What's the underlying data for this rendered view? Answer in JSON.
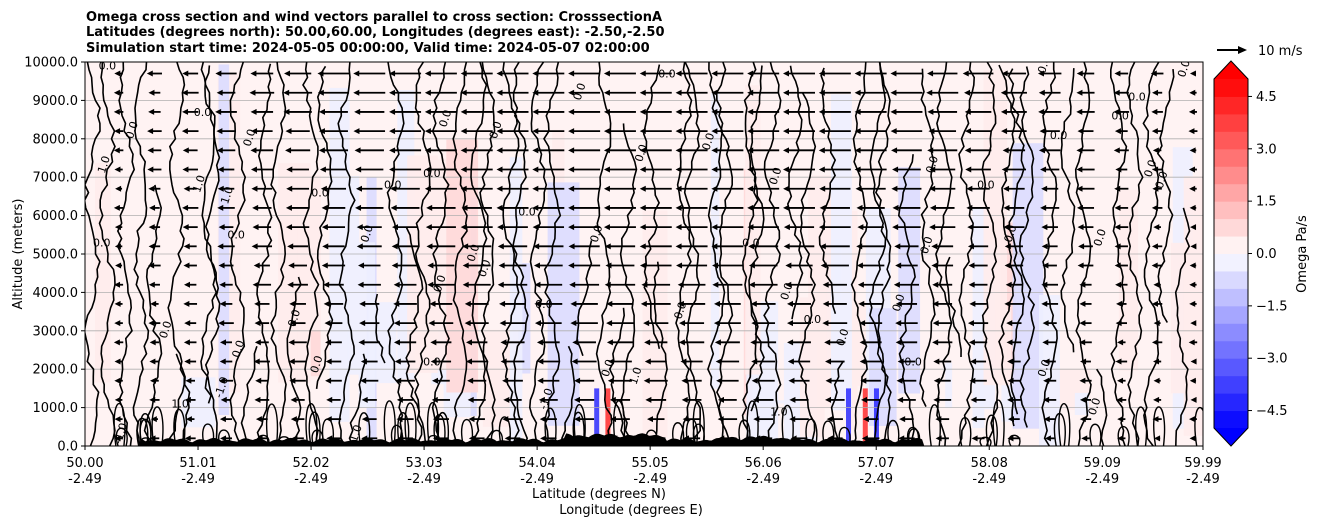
{
  "chart_data": {
    "type": "contour-cross-section",
    "title_lines": [
      "Omega cross section and wind vectors parallel to cross section: CrosssectionA",
      "Latitudes (degrees north): 50.00,60.00, Longitudes (degrees east): -2.50,-2.50",
      "Simulation start time: 2024-05-05 00:00:00, Valid time: 2024-05-07 02:00:00"
    ],
    "xlabel_lat": "Latitude (degrees N)",
    "xlabel_lon": "Longitude (degrees E)",
    "ylabel": "Altitude (meters)",
    "xlim": [
      50.0,
      59.99
    ],
    "ylim": [
      0,
      10000
    ],
    "x_ticks": [
      {
        "lat": "50.00",
        "lon": "-2.49",
        "value": 50.0
      },
      {
        "lat": "51.01",
        "lon": "-2.49",
        "value": 51.01
      },
      {
        "lat": "52.02",
        "lon": "-2.49",
        "value": 52.02
      },
      {
        "lat": "53.03",
        "lon": "-2.49",
        "value": 53.03
      },
      {
        "lat": "54.04",
        "lon": "-2.49",
        "value": 54.04
      },
      {
        "lat": "55.05",
        "lon": "-2.49",
        "value": 55.05
      },
      {
        "lat": "56.06",
        "lon": "-2.49",
        "value": 56.06
      },
      {
        "lat": "57.07",
        "lon": "-2.49",
        "value": 57.07
      },
      {
        "lat": "58.08",
        "lon": "-2.49",
        "value": 58.08
      },
      {
        "lat": "59.09",
        "lon": "-2.49",
        "value": 59.09
      },
      {
        "lat": "59.99",
        "lon": "-2.49",
        "value": 59.99
      }
    ],
    "y_ticks": [
      {
        "label": "0.0",
        "value": 0
      },
      {
        "label": "1000.0",
        "value": 1000
      },
      {
        "label": "2000.0",
        "value": 2000
      },
      {
        "label": "3000.0",
        "value": 3000
      },
      {
        "label": "4000.0",
        "value": 4000
      },
      {
        "label": "5000.0",
        "value": 5000
      },
      {
        "label": "6000.0",
        "value": 6000
      },
      {
        "label": "7000.0",
        "value": 7000
      },
      {
        "label": "8000.0",
        "value": 8000
      },
      {
        "label": "9000.0",
        "value": 9000
      },
      {
        "label": "10000.0",
        "value": 10000
      }
    ],
    "grid": true,
    "colorbar": {
      "label": "Omega Pa/s",
      "min": -5.0,
      "max": 5.0,
      "step": 0.5,
      "ticks": [
        {
          "label": "4.5",
          "value": 4.5
        },
        {
          "label": "3.0",
          "value": 3.0
        },
        {
          "label": "1.5",
          "value": 1.5
        },
        {
          "label": "0.0",
          "value": 0.0
        },
        {
          "label": "−1.5",
          "value": -1.5
        },
        {
          "label": "−3.0",
          "value": -3.0
        },
        {
          "label": "−4.5",
          "value": -4.5
        }
      ],
      "extend": "both",
      "cmap": "bwr",
      "color_neg": "#0000ff",
      "color_pos": "#ff0000"
    },
    "quiver_key": {
      "label": "10 m/s",
      "speed_ms": 10
    },
    "wind_direction": "southward (toward lower latitude)",
    "contour_line_labels": [
      "0.0",
      "1.0",
      "-1.0"
    ],
    "contour_label_samples": [
      {
        "text": "0.0",
        "lat": 50.2,
        "alt": 9800
      },
      {
        "text": "0.0",
        "lat": 50.45,
        "alt": 8200
      },
      {
        "text": "1.0",
        "lat": 50.2,
        "alt": 7300
      },
      {
        "text": "0.0",
        "lat": 50.15,
        "alt": 5200
      },
      {
        "text": "0.0",
        "lat": 50.75,
        "alt": 3000
      },
      {
        "text": "-1.0",
        "lat": 50.35,
        "alt": 300
      },
      {
        "text": "1.0",
        "lat": 50.85,
        "alt": 1000
      },
      {
        "text": "1.0",
        "lat": 51.05,
        "alt": 6800
      },
      {
        "text": "1.0",
        "lat": 51.3,
        "alt": 6500
      },
      {
        "text": "0.0",
        "lat": 51.05,
        "alt": 8600
      },
      {
        "text": "0.0",
        "lat": 51.5,
        "alt": 8000
      },
      {
        "text": "-1.0",
        "lat": 51.25,
        "alt": 1500
      },
      {
        "text": "0.0",
        "lat": 51.35,
        "alt": 5400
      },
      {
        "text": "0.0",
        "lat": 51.4,
        "alt": 2500
      },
      {
        "text": "0.0",
        "lat": 51.9,
        "alt": 3300
      },
      {
        "text": "0.0",
        "lat": 52.1,
        "alt": 6500
      },
      {
        "text": "0.0",
        "lat": 52.1,
        "alt": 2100
      },
      {
        "text": "1.0",
        "lat": 52.45,
        "alt": 300
      },
      {
        "text": "0.0",
        "lat": 52.75,
        "alt": 6700
      },
      {
        "text": "0.0",
        "lat": 52.55,
        "alt": 5500
      },
      {
        "text": "0.0",
        "lat": 53.25,
        "alt": 8500
      },
      {
        "text": "0.0",
        "lat": 53.1,
        "alt": 7000
      },
      {
        "text": "0.0",
        "lat": 53.5,
        "alt": 5000
      },
      {
        "text": "0.0",
        "lat": 53.2,
        "alt": 4200
      },
      {
        "text": "0.0",
        "lat": 53.1,
        "alt": 2100
      },
      {
        "text": "0.0",
        "lat": 53.6,
        "alt": 4600
      },
      {
        "text": "0.0",
        "lat": 53.7,
        "alt": 8200
      },
      {
        "text": "0.0",
        "lat": 53.95,
        "alt": 6000
      },
      {
        "text": "0.0",
        "lat": 54.45,
        "alt": 9200
      },
      {
        "text": "0.0",
        "lat": 54.6,
        "alt": 5500
      },
      {
        "text": "0.0",
        "lat": 54.1,
        "alt": 3600
      },
      {
        "text": "0.0",
        "lat": 54.7,
        "alt": 2000
      },
      {
        "text": "0.0",
        "lat": 55.0,
        "alt": 7600
      },
      {
        "text": "0.0",
        "lat": 55.2,
        "alt": 9600
      },
      {
        "text": "0.0",
        "lat": 55.35,
        "alt": 3500
      },
      {
        "text": "0.0",
        "lat": 55.6,
        "alt": 7900
      },
      {
        "text": "0.0",
        "lat": 55.95,
        "alt": 5200
      },
      {
        "text": "0.0",
        "lat": 56.2,
        "alt": 7000
      },
      {
        "text": "0.0",
        "lat": 56.3,
        "alt": 4000
      },
      {
        "text": "0.0",
        "lat": 56.5,
        "alt": 3200
      },
      {
        "text": "0.0",
        "lat": 56.8,
        "alt": 2800
      },
      {
        "text": "0.0",
        "lat": 57.3,
        "alt": 3700
      },
      {
        "text": "0.0",
        "lat": 57.4,
        "alt": 2100
      },
      {
        "text": "0.0",
        "lat": 57.55,
        "alt": 5200
      },
      {
        "text": "0.0",
        "lat": 57.6,
        "alt": 7300
      },
      {
        "text": "0.0",
        "lat": 58.05,
        "alt": 6700
      },
      {
        "text": "0.0",
        "lat": 58.3,
        "alt": 5500
      },
      {
        "text": "0.0",
        "lat": 58.6,
        "alt": 2000
      },
      {
        "text": "0.0",
        "lat": 58.7,
        "alt": 8000
      },
      {
        "text": "0.0",
        "lat": 59.1,
        "alt": 5400
      },
      {
        "text": "0.0",
        "lat": 59.05,
        "alt": 1000
      },
      {
        "text": "0.0",
        "lat": 59.25,
        "alt": 8500
      },
      {
        "text": "0.0",
        "lat": 59.55,
        "alt": 7200
      },
      {
        "text": "0.0",
        "lat": 59.65,
        "alt": 6900
      },
      {
        "text": "0.0",
        "lat": 59.4,
        "alt": 9000
      },
      {
        "text": "0.0",
        "lat": 58.6,
        "alt": 9900
      },
      {
        "text": "0.0",
        "lat": 59.85,
        "alt": 9800
      },
      {
        "text": "1.0",
        "lat": 56.2,
        "alt": 800
      },
      {
        "text": "-1.0",
        "lat": 54.15,
        "alt": 1200
      },
      {
        "text": "1.0",
        "lat": 54.95,
        "alt": 1800
      }
    ]
  }
}
